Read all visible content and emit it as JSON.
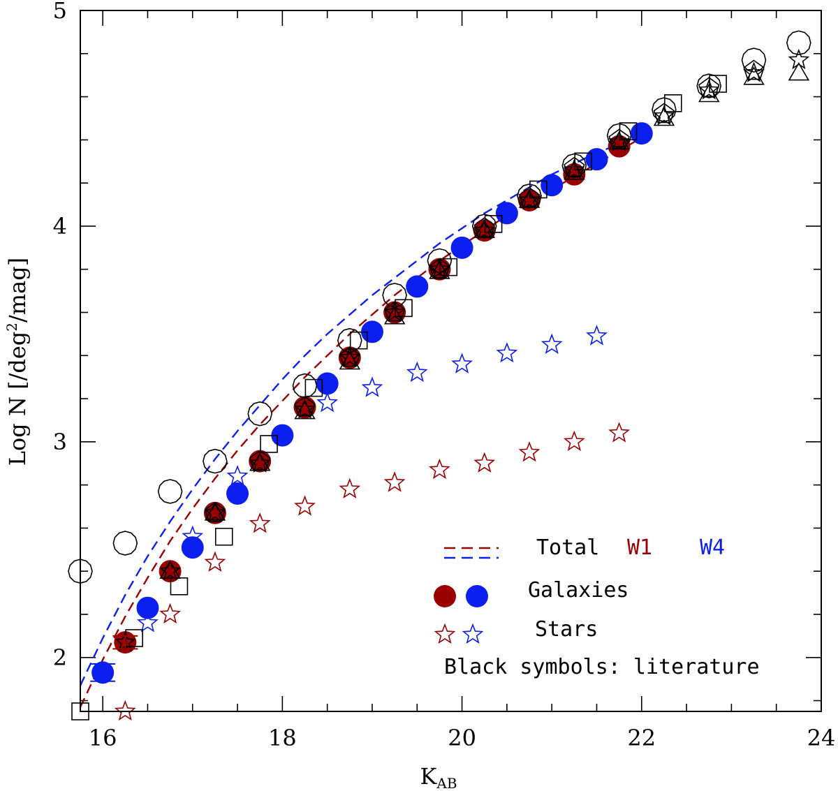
{
  "chart_data": {
    "type": "scatter",
    "xlabel": "K",
    "xlabel_sub": "AB",
    "ylabel": "Log N [/deg",
    "ylabel_sup": "2",
    "ylabel_tail": "/mag]",
    "xlim": [
      15.75,
      24
    ],
    "ylim": [
      1.75,
      5
    ],
    "xticks": [
      16,
      18,
      20,
      22,
      24
    ],
    "yticks": [
      2,
      3,
      4,
      5
    ],
    "xtick_labels": [
      "16",
      "18",
      "20",
      "22",
      "24"
    ],
    "ytick_labels": [
      "2",
      "3",
      "4",
      "5"
    ],
    "colors": {
      "w1": "#9b0000",
      "w4": "#0a1ff0",
      "black": "#000000"
    },
    "series": [
      {
        "name": "W1 Galaxies",
        "marker": "filled-circle",
        "color": "#9b0000",
        "x": [
          16.25,
          16.75,
          17.25,
          17.75,
          18.25,
          18.75,
          19.25,
          19.75,
          20.25,
          20.75,
          21.25,
          21.75
        ],
        "y": [
          2.07,
          2.4,
          2.67,
          2.91,
          3.16,
          3.39,
          3.6,
          3.8,
          3.98,
          4.12,
          4.24,
          4.37
        ]
      },
      {
        "name": "W4 Galaxies",
        "marker": "filled-circle",
        "color": "#0a1ff0",
        "x": [
          16.0,
          16.5,
          17.0,
          17.5,
          18.0,
          18.5,
          19.0,
          19.5,
          20.0,
          20.5,
          21.0,
          21.5,
          22.0
        ],
        "y": [
          1.93,
          2.23,
          2.51,
          2.76,
          3.03,
          3.27,
          3.51,
          3.72,
          3.9,
          4.06,
          4.19,
          4.31,
          4.43
        ]
      },
      {
        "name": "W1 Stars",
        "marker": "open-star",
        "color": "#9b0000",
        "x": [
          16.25,
          16.75,
          17.25,
          17.75,
          18.25,
          18.75,
          19.25,
          19.75,
          20.25,
          20.75,
          21.25,
          21.75
        ],
        "y": [
          1.75,
          2.2,
          2.44,
          2.62,
          2.7,
          2.78,
          2.81,
          2.87,
          2.9,
          2.95,
          3.0,
          3.04
        ]
      },
      {
        "name": "W4 Stars",
        "marker": "open-star",
        "color": "#0a1ff0",
        "x": [
          16.5,
          17.0,
          17.5,
          18.5,
          19.0,
          19.5,
          20.0,
          20.5,
          21.0,
          21.5
        ],
        "y": [
          2.16,
          2.56,
          2.84,
          3.18,
          3.25,
          3.32,
          3.36,
          3.41,
          3.45,
          3.49
        ]
      },
      {
        "name": "Literature circles",
        "marker": "open-circle",
        "color": "#000000",
        "x": [
          15.75,
          16.25,
          16.75,
          17.25,
          17.75,
          18.25,
          18.75,
          19.25,
          19.75,
          20.25,
          20.75,
          21.25,
          21.75,
          22.25,
          22.75,
          23.25,
          23.75
        ],
        "y": [
          2.4,
          2.53,
          2.77,
          2.91,
          3.13,
          3.26,
          3.47,
          3.68,
          3.84,
          4.0,
          4.14,
          4.28,
          4.42,
          4.54,
          4.65,
          4.77,
          4.85
        ]
      },
      {
        "name": "Literature squares",
        "marker": "open-square",
        "color": "#000000",
        "x": [
          15.75,
          16.35,
          16.85,
          17.35,
          17.85,
          18.35,
          18.85,
          19.35,
          19.85,
          20.35,
          20.85,
          21.35,
          21.85,
          22.35,
          22.85
        ],
        "y": [
          1.75,
          2.09,
          2.33,
          2.56,
          2.99,
          3.25,
          3.47,
          3.62,
          3.81,
          4.01,
          4.17,
          4.3,
          4.44,
          4.57,
          4.66
        ]
      },
      {
        "name": "Literature triangles",
        "marker": "open-triangle",
        "color": "#000000",
        "x": [
          16.75,
          17.25,
          17.75,
          18.25,
          18.75,
          19.25,
          19.75,
          20.25,
          20.75,
          21.25,
          21.75,
          22.25,
          22.75,
          23.25,
          23.75
        ],
        "y": [
          2.4,
          2.67,
          2.9,
          3.14,
          3.37,
          3.58,
          3.79,
          3.98,
          4.12,
          4.25,
          4.39,
          4.5,
          4.61,
          4.69,
          4.71
        ]
      },
      {
        "name": "Literature stars",
        "marker": "open-star",
        "color": "#000000",
        "x": [
          16.25,
          16.75,
          17.25,
          17.75,
          18.25,
          18.75,
          19.25,
          19.75,
          20.25,
          20.75,
          21.25,
          21.75,
          22.25,
          22.75,
          23.25,
          23.75
        ],
        "y": [
          2.07,
          2.4,
          2.67,
          2.9,
          3.15,
          3.39,
          3.6,
          3.8,
          3.98,
          4.12,
          4.26,
          4.39,
          4.51,
          4.63,
          4.71,
          4.77
        ]
      },
      {
        "name": "Literature pentagons",
        "marker": "open-pentagon",
        "color": "#000000",
        "x": [
          17.25,
          17.75,
          18.25,
          18.75,
          19.25,
          19.75,
          20.25,
          20.75,
          21.25,
          21.75,
          22.25,
          22.75,
          23.25
        ],
        "y": [
          2.67,
          2.91,
          3.16,
          3.39,
          3.6,
          3.8,
          3.99,
          4.13,
          4.27,
          4.4,
          4.52,
          4.64,
          4.72
        ]
      }
    ],
    "curves": [
      {
        "name": "Total W1",
        "style": "dashed",
        "color": "#9b0000",
        "x": [
          15.75,
          16.0,
          16.25,
          16.5,
          16.75,
          17.0,
          17.25,
          17.5,
          17.75,
          18.0,
          18.25,
          18.5,
          18.75,
          19.0,
          19.25,
          19.5,
          19.75,
          20.0,
          20.25,
          20.5,
          20.75,
          21.0,
          21.25,
          21.5,
          21.75,
          22.0,
          22.05
        ],
        "y": [
          1.77,
          1.99,
          2.19,
          2.37,
          2.54,
          2.69,
          2.83,
          2.96,
          3.08,
          3.19,
          3.3,
          3.4,
          3.5,
          3.59,
          3.68,
          3.76,
          3.84,
          3.91,
          3.98,
          4.05,
          4.11,
          4.17,
          4.23,
          4.29,
          4.35,
          4.41,
          4.42
        ]
      },
      {
        "name": "Total W4",
        "style": "dashed",
        "color": "#0a1ff0",
        "x": [
          15.75,
          16.0,
          16.25,
          16.5,
          16.75,
          17.0,
          17.25,
          17.5,
          17.75,
          18.0,
          18.25,
          18.5,
          18.75,
          19.0,
          19.25,
          19.5,
          19.75,
          20.0,
          20.25,
          20.5,
          20.75,
          21.0,
          21.25,
          21.5,
          21.75,
          22.0,
          22.05
        ],
        "y": [
          1.87,
          2.09,
          2.29,
          2.47,
          2.63,
          2.78,
          2.92,
          3.05,
          3.17,
          3.29,
          3.4,
          3.5,
          3.59,
          3.68,
          3.76,
          3.84,
          3.92,
          3.99,
          4.06,
          4.12,
          4.18,
          4.24,
          4.29,
          4.34,
          4.38,
          4.42,
          4.43
        ]
      }
    ],
    "error_bars": [
      {
        "series": "W4 Galaxies",
        "x": 16.0,
        "y": 1.93,
        "ylow": 1.89,
        "yhigh": 1.97,
        "color": "#0a1ff0"
      },
      {
        "series": "W1 Galaxies",
        "x": 16.25,
        "y": 2.07,
        "ylow": 2.04,
        "yhigh": 2.1,
        "color": "#9b0000"
      }
    ],
    "legend": {
      "position": "bottom-right",
      "total_label": "Total",
      "w1_label": "W1",
      "w4_label": "W4",
      "galaxies_label": "Galaxies",
      "stars_label": "Stars",
      "note": "Black symbols: literature"
    }
  }
}
